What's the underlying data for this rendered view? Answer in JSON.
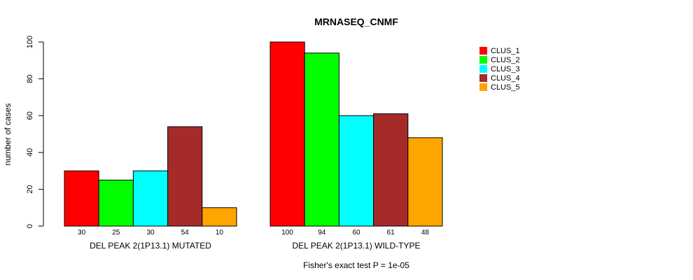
{
  "chart_data": {
    "type": "bar",
    "title": "MRNASEQ_CNMF",
    "ylabel": "number of cases",
    "ylim": [
      0,
      100
    ],
    "yticks": [
      "0",
      "20",
      "40",
      "60",
      "80",
      "100"
    ],
    "groups": [
      "DEL PEAK  2(1P13.1) MUTATED",
      "DEL PEAK  2(1P13.1) WILD-TYPE"
    ],
    "series": [
      {
        "name": "CLUS_1",
        "color": "#ff0000",
        "values": [
          30,
          100
        ]
      },
      {
        "name": "CLUS_2",
        "color": "#00ff00",
        "values": [
          25,
          94
        ]
      },
      {
        "name": "CLUS_3",
        "color": "#00ffff",
        "values": [
          30,
          60
        ]
      },
      {
        "name": "CLUS_4",
        "color": "#a52a2a",
        "values": [
          54,
          61
        ]
      },
      {
        "name": "CLUS_5",
        "color": "#ffa500",
        "values": [
          10,
          48
        ]
      }
    ],
    "count_labels": [
      [
        "30",
        "25",
        "30",
        "54",
        "10"
      ],
      [
        "100",
        "94",
        "60",
        "61",
        "48"
      ]
    ],
    "footnote": "Fisher's exact test P = 1e-05",
    "legend_position": "top-right",
    "grid": false
  }
}
